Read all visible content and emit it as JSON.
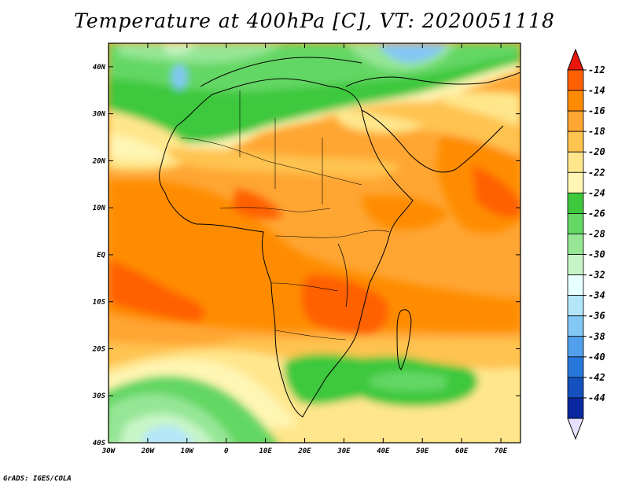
{
  "title": "Temperature at 400hPa [C], VT: 2020051118",
  "credit": "GrADS: IGES/COLA",
  "map": {
    "lon_range": [
      -30,
      75
    ],
    "lat_range": [
      -40,
      45
    ],
    "lon_ticks": [
      {
        "value": -30,
        "label": "30W"
      },
      {
        "value": -20,
        "label": "20W"
      },
      {
        "value": -10,
        "label": "10W"
      },
      {
        "value": 0,
        "label": "0"
      },
      {
        "value": 10,
        "label": "10E"
      },
      {
        "value": 20,
        "label": "20E"
      },
      {
        "value": 30,
        "label": "30E"
      },
      {
        "value": 40,
        "label": "40E"
      },
      {
        "value": 50,
        "label": "50E"
      },
      {
        "value": 60,
        "label": "60E"
      },
      {
        "value": 70,
        "label": "70E"
      }
    ],
    "lat_ticks": [
      {
        "value": 40,
        "label": "40N"
      },
      {
        "value": 30,
        "label": "30N"
      },
      {
        "value": 20,
        "label": "20N"
      },
      {
        "value": 10,
        "label": "10N"
      },
      {
        "value": 0,
        "label": "EQ"
      },
      {
        "value": -10,
        "label": "10S"
      },
      {
        "value": -20,
        "label": "20S"
      },
      {
        "value": -30,
        "label": "30S"
      },
      {
        "value": -40,
        "label": "40S"
      }
    ]
  },
  "colorbar": {
    "labels": [
      "-12",
      "-14",
      "-16",
      "-18",
      "-20",
      "-22",
      "-24",
      "-26",
      "-28",
      "-30",
      "-32",
      "-34",
      "-36",
      "-38",
      "-40",
      "-42",
      "-44"
    ],
    "colors": [
      "#ff6000",
      "#ff8c00",
      "#ffa532",
      "#ffc350",
      "#ffe68c",
      "#fff5b4",
      "#3ec83e",
      "#64d764",
      "#96e696",
      "#c8f5c8",
      "#e6ffff",
      "#b4e6fa",
      "#82c8f5",
      "#50a0eb",
      "#2878dc",
      "#1450be",
      "#0a28a0",
      "#000a64"
    ],
    "end_caps": {
      "top": "#e8170c",
      "bottom": "#e6e0ff"
    }
  }
}
